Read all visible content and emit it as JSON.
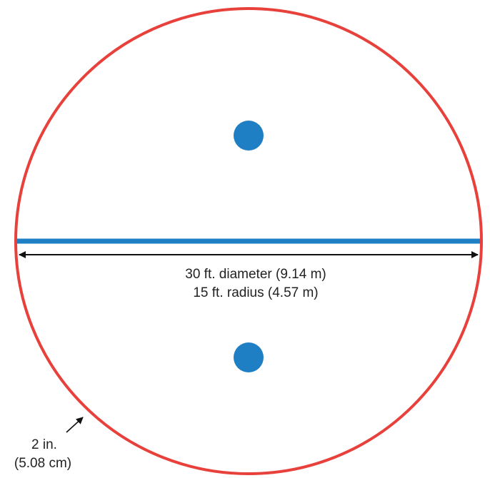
{
  "diagram": {
    "measurements": {
      "diameter": "30 ft. diameter (9.14 m)",
      "radius": "15 ft. radius (4.57 m)",
      "line_width": "2 in.",
      "line_width_metric": "(5.08 cm)"
    },
    "colors": {
      "boundary_line": "#e8403b",
      "center_line": "#1f7fc4",
      "spots": "#1f7fc4",
      "arrows": "#111111",
      "text": "#222222",
      "background": "#ffffff"
    }
  }
}
